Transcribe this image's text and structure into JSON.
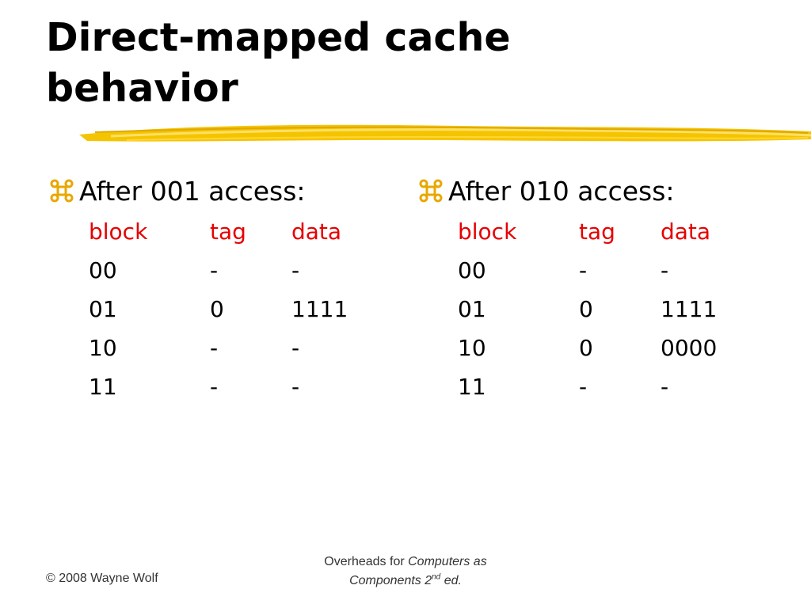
{
  "slide": {
    "title_line1": "Direct-mapped cache",
    "title_line2": "behavior",
    "accent_color": "#f5c400",
    "header_color": "#e60000"
  },
  "panels": [
    {
      "heading": "After 001 access:",
      "columns": [
        "block",
        "tag",
        "data"
      ],
      "rows": [
        [
          "00",
          "-",
          "-"
        ],
        [
          "01",
          "0",
          "1111"
        ],
        [
          "10",
          "-",
          "-"
        ],
        [
          "11",
          "-",
          "-"
        ]
      ]
    },
    {
      "heading": "After 010 access:",
      "columns": [
        "block",
        "tag",
        "data"
      ],
      "rows": [
        [
          "00",
          "-",
          "-"
        ],
        [
          "01",
          "0",
          "1111"
        ],
        [
          "10",
          "0",
          "0000"
        ],
        [
          "11",
          "-",
          "-"
        ]
      ]
    }
  ],
  "footer": {
    "copyright": "© 2008 Wayne Wolf",
    "line1_plain": "Overheads for ",
    "line1_italic": "Computers as",
    "line2_italic": "Components 2",
    "line2_sup": "nd",
    "line2_tail": " ed."
  },
  "icons": {
    "bullet": "command-key-icon",
    "decoration": "yellow-brush-stroke"
  }
}
